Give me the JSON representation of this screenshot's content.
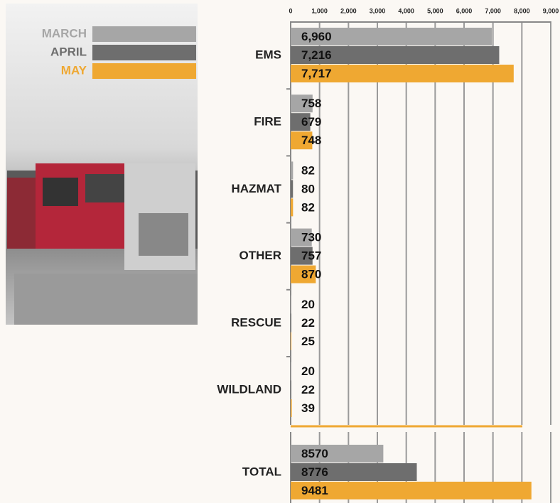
{
  "chart_data": [
    {
      "type": "bar",
      "orientation": "horizontal",
      "categories": [
        "EMS",
        "FIRE",
        "HAZMAT",
        "OTHER",
        "RESCUE",
        "WILDLAND"
      ],
      "series": [
        {
          "name": "MARCH",
          "color": "#a6a6a6",
          "values": [
            6960,
            758,
            82,
            730,
            20,
            20
          ],
          "value_labels": [
            "6,960",
            "758",
            "82",
            "730",
            "20",
            "20"
          ]
        },
        {
          "name": "APRIL",
          "color": "#6e6e6e",
          "values": [
            7216,
            679,
            80,
            757,
            22,
            22
          ],
          "value_labels": [
            "7,216",
            "679",
            "80",
            "757",
            "22",
            "22"
          ]
        },
        {
          "name": "MAY",
          "color": "#efa832",
          "values": [
            7717,
            748,
            82,
            870,
            25,
            39
          ],
          "value_labels": [
            "7,717",
            "748",
            "82",
            "870",
            "25",
            "39"
          ]
        }
      ],
      "xlim": [
        0,
        9000
      ],
      "xticks": [
        0,
        {
          "value": 1000,
          "label": "1,000"
        },
        {
          "value": 2000,
          "label": "2,000"
        },
        {
          "value": 3000,
          "label": "3,000"
        },
        {
          "value": 4000,
          "label": "4,000"
        },
        {
          "value": 5000,
          "label": "5,000"
        },
        {
          "value": 6000,
          "label": "6,000"
        },
        {
          "value": 7000,
          "label": "7,000"
        },
        {
          "value": 8000,
          "label": "8,000"
        },
        {
          "value": 9000,
          "label": "9,000"
        }
      ],
      "grid": true
    },
    {
      "type": "bar",
      "orientation": "horizontal",
      "categories": [
        "TOTAL"
      ],
      "series": [
        {
          "name": "MARCH",
          "color": "#a6a6a6",
          "values": [
            8570
          ]
        },
        {
          "name": "APRIL",
          "color": "#6e6e6e",
          "values": [
            8776
          ]
        },
        {
          "name": "MAY",
          "color": "#efa832",
          "values": [
            9481
          ]
        }
      ],
      "xlim": [
        8000,
        9600
      ]
    }
  ]
}
